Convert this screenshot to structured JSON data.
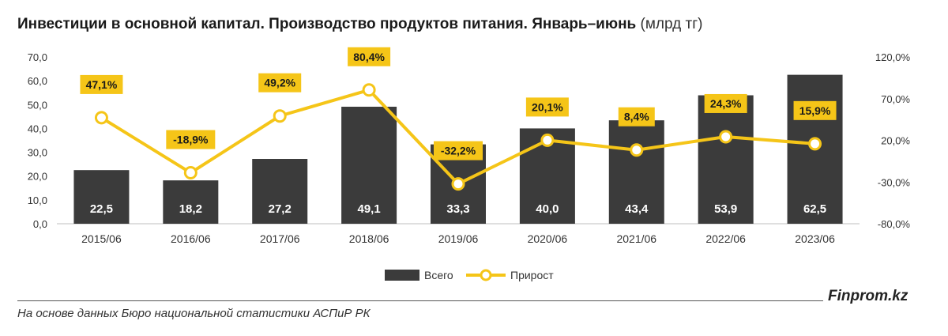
{
  "header": {
    "title": "Инвестиции в основной капитал. Производство продуктов питания. Январь–июнь",
    "unit": "(млрд тг)"
  },
  "footer": {
    "source": "На основе данных Бюро национальной статистики АСПиР РК",
    "brand": "Finprom.kz"
  },
  "colors": {
    "bar": "#3b3b3b",
    "line": "#f5c518",
    "label_bg": "#f5c518",
    "axis_text": "#333333"
  },
  "chart_data": {
    "type": "bar",
    "categories": [
      "2015/06",
      "2016/06",
      "2017/06",
      "2018/06",
      "2019/06",
      "2020/06",
      "2021/06",
      "2022/06",
      "2023/06"
    ],
    "series": [
      {
        "name": "Всего",
        "type": "bar",
        "axis": "left",
        "values": [
          22.5,
          18.2,
          27.2,
          49.1,
          33.3,
          40.0,
          43.4,
          53.9,
          62.5
        ],
        "labels": [
          "22,5",
          "18,2",
          "27,2",
          "49,1",
          "33,3",
          "40,0",
          "43,4",
          "53,9",
          "62,5"
        ]
      },
      {
        "name": "Прирост",
        "type": "line",
        "axis": "right",
        "values": [
          47.1,
          -18.9,
          49.2,
          80.4,
          -32.2,
          20.1,
          8.4,
          24.3,
          15.9
        ],
        "labels": [
          "47,1%",
          "-18,9%",
          "49,2%",
          "80,4%",
          "-32,2%",
          "20,1%",
          "8,4%",
          "24,3%",
          "15,9%"
        ]
      }
    ],
    "y_left": {
      "lim": [
        0,
        70
      ],
      "ticks": [
        0,
        10,
        20,
        30,
        40,
        50,
        60,
        70
      ],
      "tick_labels": [
        "0,0",
        "10,0",
        "20,0",
        "30,0",
        "40,0",
        "50,0",
        "60,0",
        "70,0"
      ]
    },
    "y_right": {
      "lim": [
        -80,
        120
      ],
      "ticks": [
        -80,
        -30,
        20,
        70,
        120
      ],
      "tick_labels": [
        "-80,0%",
        "-30,0%",
        "20,0%",
        "70,0%",
        "120,0%"
      ]
    },
    "grid": false,
    "legend": "bottom"
  }
}
